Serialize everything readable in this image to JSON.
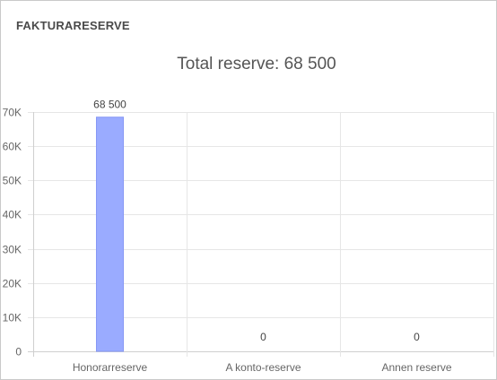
{
  "panel": {
    "title": "FAKTURARESERVE"
  },
  "chart_data": {
    "type": "bar",
    "title": "Total reserve: 68 500",
    "categories": [
      "Honorarreserve",
      "A konto-reserve",
      "Annen reserve"
    ],
    "values": [
      68500,
      0,
      0
    ],
    "data_labels": [
      "68 500",
      "0",
      "0"
    ],
    "ylim": [
      0,
      70000
    ],
    "yticks": [
      0,
      10000,
      20000,
      30000,
      40000,
      50000,
      60000,
      70000
    ],
    "ytick_labels": [
      "0",
      "10K",
      "20K",
      "30K",
      "40K",
      "50K",
      "60K",
      "70K"
    ],
    "xlabel": "",
    "ylabel": "",
    "grid": true,
    "legend": "none",
    "bar_color": "#9aabff",
    "bar_edge_color": "#8798f5",
    "grid_color": "#e6e6e6",
    "text_color": "#666666",
    "title_color": "#555555"
  }
}
